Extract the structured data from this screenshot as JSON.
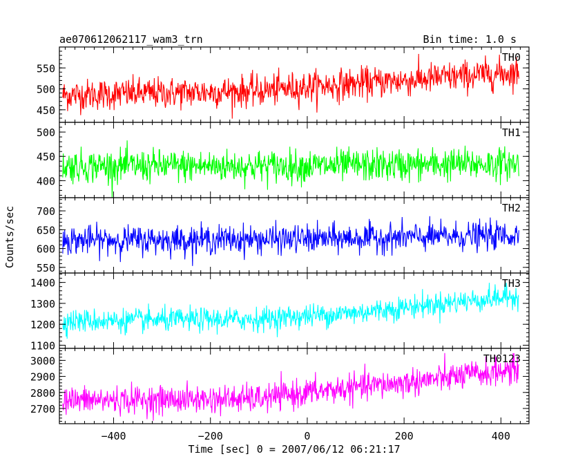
{
  "chart_data": {
    "type": "line",
    "title": "ae070612062117_wam3_trn",
    "subtitle": "Bin time: 1.0 s",
    "xlabel": "Time [sec] 0 = 2007/06/12 06:21:17",
    "ylabel": "Counts/sec",
    "xlim": [
      -512,
      458
    ],
    "x_start": -505,
    "x_end": 437,
    "x_ticks": [
      -400,
      -200,
      0,
      200,
      400
    ],
    "grid": false,
    "panels": [
      {
        "name": "TH0",
        "color": "#ff0000",
        "ylim": [
          420,
          600
        ],
        "yticks": [
          450,
          500,
          550
        ],
        "trend": [
          {
            "x": -505,
            "y": 485
          },
          {
            "x": -100,
            "y": 495
          },
          {
            "x": 0,
            "y": 505
          },
          {
            "x": 200,
            "y": 520
          },
          {
            "x": 437,
            "y": 540
          }
        ],
        "noise": 30
      },
      {
        "name": "TH1",
        "color": "#00ff00",
        "ylim": [
          365,
          520
        ],
        "yticks": [
          400,
          450,
          500
        ],
        "trend": [
          {
            "x": -505,
            "y": 430
          },
          {
            "x": 0,
            "y": 430
          },
          {
            "x": 437,
            "y": 435
          }
        ],
        "noise": 27
      },
      {
        "name": "TH2",
        "color": "#0000ff",
        "ylim": [
          535,
          735
        ],
        "yticks": [
          550,
          600,
          650,
          700
        ],
        "trend": [
          {
            "x": -505,
            "y": 622
          },
          {
            "x": 0,
            "y": 625
          },
          {
            "x": 437,
            "y": 635
          }
        ],
        "noise": 30
      },
      {
        "name": "TH3",
        "color": "#00ffff",
        "ylim": [
          1085,
          1445
        ],
        "yticks": [
          1100,
          1200,
          1300,
          1400
        ],
        "trend": [
          {
            "x": -505,
            "y": 1215
          },
          {
            "x": -100,
            "y": 1225
          },
          {
            "x": 100,
            "y": 1255
          },
          {
            "x": 300,
            "y": 1305
          },
          {
            "x": 437,
            "y": 1335
          }
        ],
        "noise": 45
      },
      {
        "name": "TH0123",
        "color": "#ff00ff",
        "ylim": [
          2605,
          3075
        ],
        "yticks": [
          2700,
          2800,
          2900,
          3000
        ],
        "trend": [
          {
            "x": -505,
            "y": 2750
          },
          {
            "x": -100,
            "y": 2760
          },
          {
            "x": 0,
            "y": 2800
          },
          {
            "x": 200,
            "y": 2860
          },
          {
            "x": 437,
            "y": 2945
          }
        ],
        "noise": 70
      }
    ]
  }
}
